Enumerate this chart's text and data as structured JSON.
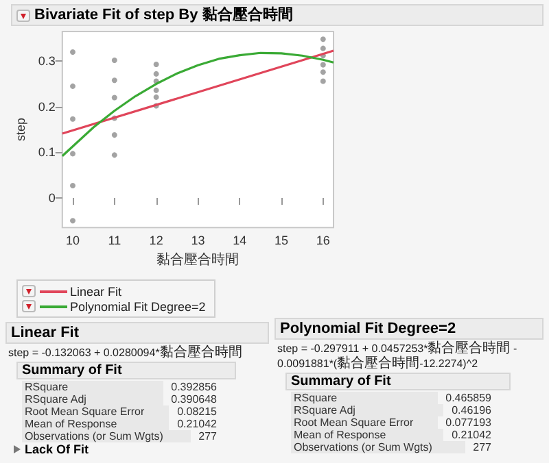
{
  "chart_data": {
    "type": "scatter",
    "title": "Bivariate Fit of step By 黏合壓合時間",
    "xlabel": "黏合壓合時間",
    "ylabel": "step",
    "xlim": [
      9.75,
      16.25
    ],
    "xticks": [
      10,
      11,
      12,
      13,
      14,
      15,
      16
    ],
    "ylim": [
      -0.065,
      0.365
    ],
    "yticks": [
      0,
      0.1,
      0.2,
      0.3
    ],
    "grid": false,
    "legend": "bottom left",
    "series": [
      {
        "marker": "circle",
        "color": "#8c8c8c",
        "x": [
          10,
          10,
          10,
          10,
          10,
          10,
          11,
          11,
          11,
          11,
          11,
          11,
          12,
          12,
          12,
          12,
          12,
          12,
          16,
          16,
          16,
          16,
          16,
          16
        ],
        "values": [
          0.32,
          0.245,
          0.173,
          0.097,
          0.027,
          -0.05,
          0.302,
          0.258,
          0.22,
          0.175,
          0.138,
          0.094,
          0.293,
          0.272,
          0.256,
          0.236,
          0.221,
          0.202,
          0.348,
          0.328,
          0.312,
          0.292,
          0.276,
          0.256
        ]
      },
      {
        "type": "line",
        "marker": "none",
        "name": "Linear Fit",
        "color": "#e0455a",
        "x": [
          9.75,
          16.25
        ],
        "values": [
          0.141,
          0.323
        ]
      },
      {
        "type": "line",
        "marker": "none",
        "name": "Polynomial Fit Degree=2",
        "color": "#3aaa35",
        "x": [
          9.75,
          10.5,
          11,
          11.5,
          12,
          12.5,
          13,
          13.5,
          14,
          14.5,
          15,
          15.5,
          16,
          16.25
        ],
        "values": [
          0.092,
          0.155,
          0.191,
          0.223,
          0.25,
          0.273,
          0.291,
          0.305,
          0.313,
          0.318,
          0.317,
          0.312,
          0.303,
          0.297
        ]
      }
    ],
    "annotations": [
      "Linear Fit",
      "step = -0.132063 + 0.0280094*黏合壓合時間",
      "Summary of Fit",
      "RSquare",
      "0.392856",
      "RSquare Adj",
      "0.390648",
      "Root Mean Square Error",
      "0.08215",
      "Mean of Response",
      "0.21042",
      "Observations (or Sum Wgts)",
      "277",
      "Lack Of Fit",
      "Polynomial Fit Degree=2",
      "step = -0.297911 + 0.0457253*黏合壓合時間 - 0.0091881*(黏合壓合時間-12.2274)^2",
      "Summary of Fit",
      "RSquare",
      "0.465859",
      "RSquare Adj",
      "0.46196",
      "Root Mean Square Error",
      "0.077193",
      "Mean of Response",
      "0.21042",
      "Observations (or Sum Wgts)",
      "277"
    ]
  }
}
